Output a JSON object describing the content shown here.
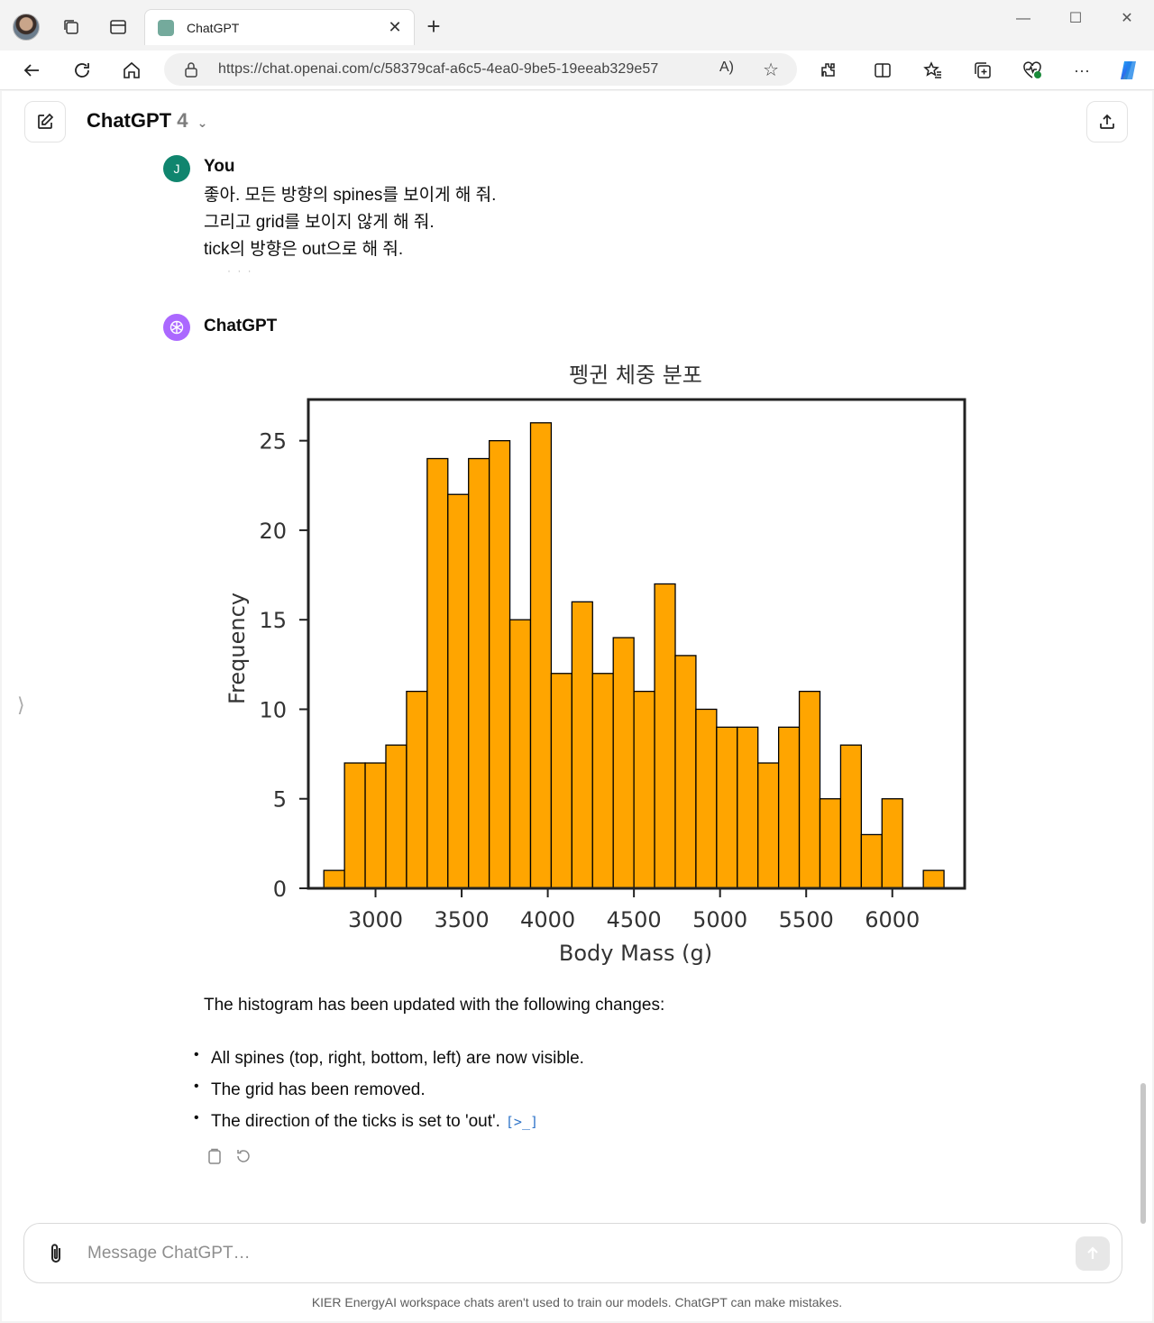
{
  "browser": {
    "tab_title": "ChatGPT",
    "url": "https://chat.openai.com/c/58379caf-a6c5-4ea0-9be5-19eeab329e57",
    "read_aloud": "A)",
    "icons": [
      "workspaces-icon",
      "tab-actions-icon",
      "back-icon",
      "refresh-icon",
      "home-icon",
      "lock-icon",
      "favorite-icon",
      "extensions-icon",
      "split-screen-icon",
      "favorites-icon",
      "collections-icon",
      "browser-essentials-icon",
      "more-icon",
      "copilot-icon"
    ]
  },
  "header": {
    "model_name": "ChatGPT",
    "model_version": "4",
    "chevron": "⌄"
  },
  "user_message": {
    "avatar_letter": "J",
    "author": "You",
    "lines": [
      "좋아. 모든 방향의 spines를 보이게 해 줘.",
      "그리고 grid를 보이지 않게 해 줘.",
      "tick의 방향은 out으로 해 줘."
    ],
    "truncation": "· · ·"
  },
  "assistant_message": {
    "author": "ChatGPT",
    "summary": "The histogram has been updated with the following changes:",
    "bullets": [
      "All spines (top, right, bottom, left) are now visible.",
      "The grid has been removed.",
      "The direction of the ticks is set to 'out'."
    ],
    "code_link": "[>_]"
  },
  "chart_data": {
    "type": "bar",
    "title": "펭귄 체중 분포",
    "xlabel": "Body Mass (g)",
    "ylabel": "Frequency",
    "bar_color": "#ffa500",
    "edge_color": "#000000",
    "grid": false,
    "spines": "all",
    "tick_direction": "out",
    "xlim": [
      2610,
      6420
    ],
    "ylim": [
      0,
      27.3
    ],
    "xticks": [
      3000,
      3500,
      4000,
      4500,
      5000,
      5500,
      6000
    ],
    "yticks": [
      0,
      5,
      10,
      15,
      20,
      25
    ],
    "bin_start": 2700,
    "bin_width": 120,
    "counts": [
      1,
      7,
      7,
      8,
      11,
      24,
      22,
      24,
      25,
      15,
      26,
      12,
      16,
      12,
      14,
      11,
      17,
      13,
      10,
      9,
      9,
      7,
      9,
      11,
      5,
      8,
      3,
      5,
      0,
      1
    ]
  },
  "composer": {
    "placeholder": "Message ChatGPT…"
  },
  "footer": {
    "disclaimer": "KIER EnergyAI workspace chats aren't used to train our models. ChatGPT can make mistakes."
  }
}
